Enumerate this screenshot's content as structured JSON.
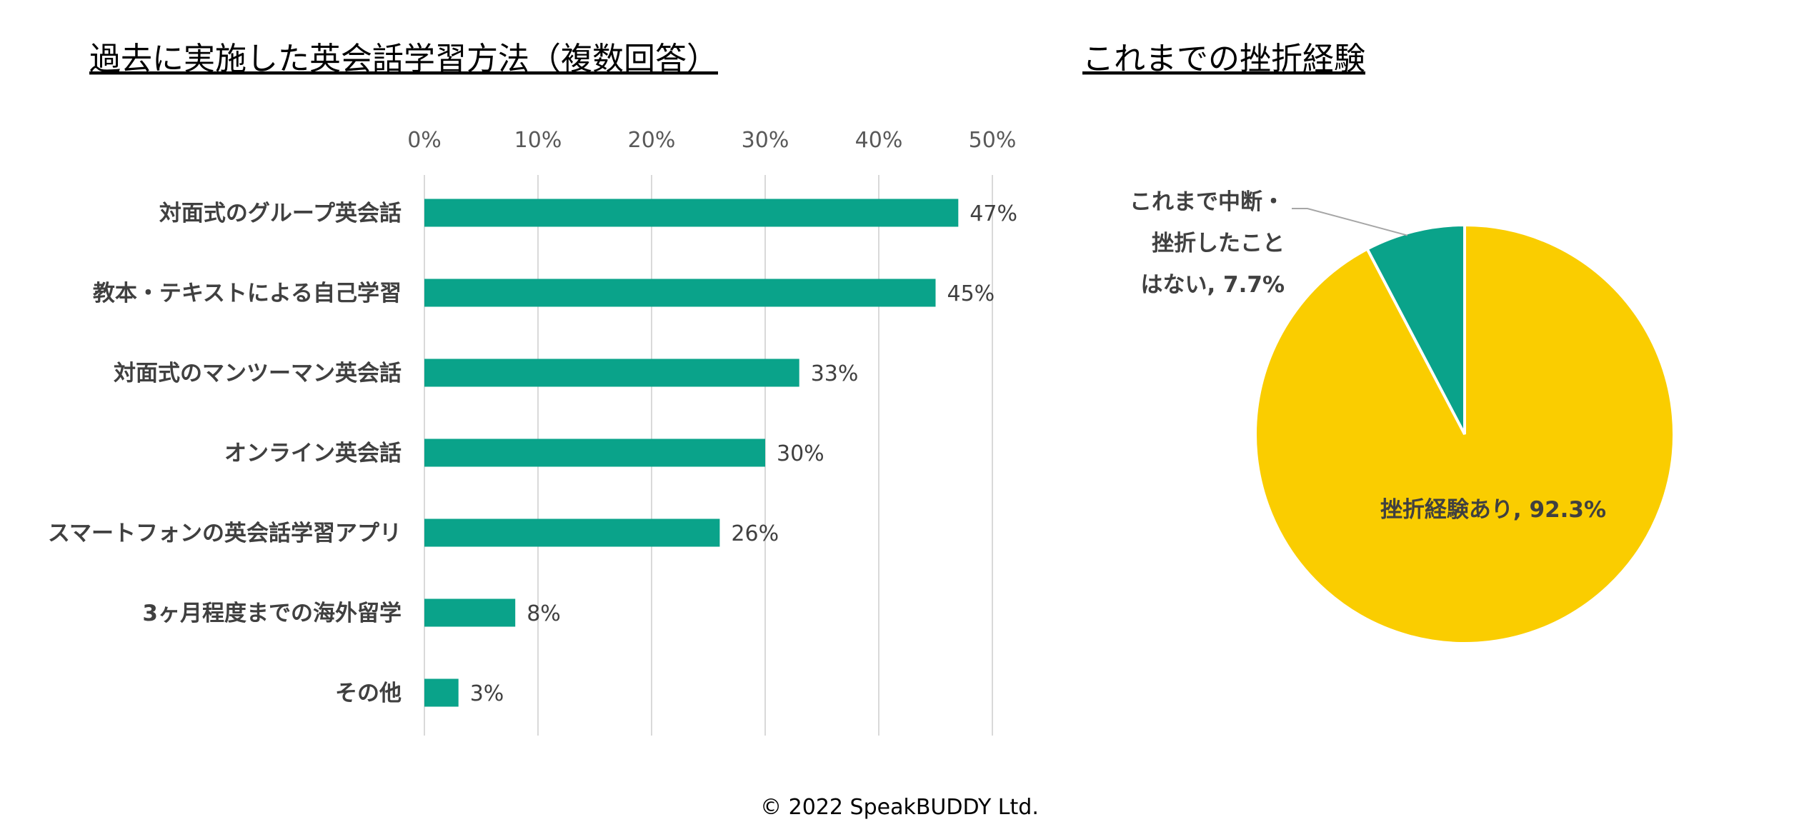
{
  "footer": "© 2022 SpeakBUDDY Ltd.",
  "colors": {
    "bar": "#0aa38a",
    "pie_main": "#facd00",
    "pie_minor": "#0aa38a",
    "grid": "#d9d9d9"
  },
  "chart_data": [
    {
      "type": "bar",
      "orientation": "horizontal",
      "title": "過去に実施した英会話学習方法（複数回答）",
      "categories": [
        "対面式のグループ英会話",
        "教本・テキストによる自己学習",
        "対面式のマンツーマン英会話",
        "オンライン英会話",
        "スマートフォンの英会話学習アプリ",
        "3ヶ月程度までの海外留学",
        "その他"
      ],
      "values": [
        47,
        45,
        33,
        30,
        26,
        8,
        3
      ],
      "value_labels": [
        "47%",
        "45%",
        "33%",
        "30%",
        "26%",
        "8%",
        "3%"
      ],
      "xlim": [
        0,
        50
      ],
      "xticks": [
        "0%",
        "10%",
        "20%",
        "30%",
        "40%",
        "50%"
      ],
      "x_axis_position": "top",
      "grid": true
    },
    {
      "type": "pie",
      "title": "これまでの挫折経験",
      "slices": [
        {
          "label": "挫折経験あり, 92.3%",
          "value": 92.3
        },
        {
          "label_lines": [
            "これまで中断・",
            "挫折したこと",
            "はない, 7.7%"
          ],
          "value": 7.7
        }
      ]
    }
  ]
}
